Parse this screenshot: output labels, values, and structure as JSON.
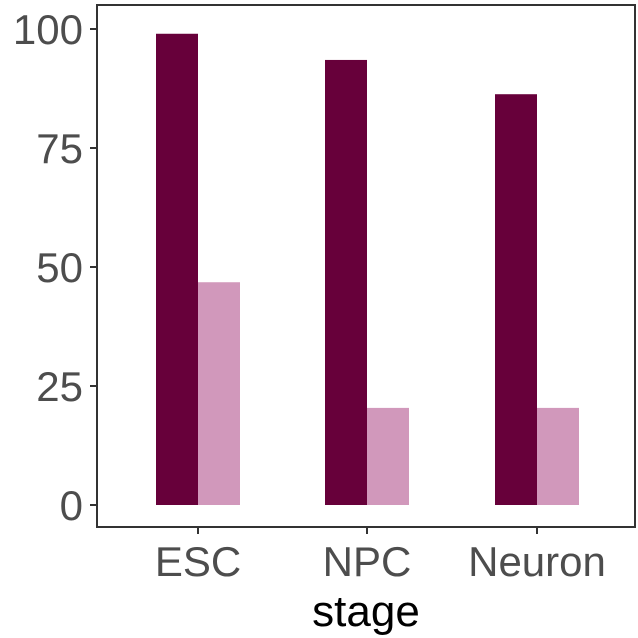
{
  "chart_data": {
    "type": "bar",
    "categories": [
      "ESC",
      "NPC",
      "Neuron"
    ],
    "series": [
      {
        "color": "#67003a",
        "values": [
          99,
          93.5,
          86.3
        ]
      },
      {
        "color": "#d198bb",
        "values": [
          46.8,
          20.4,
          20.4
        ]
      }
    ],
    "xlabel": "stage",
    "ylabel": "",
    "ylim": [
      0,
      100
    ],
    "yticks": [
      "0",
      "25",
      "50",
      "75",
      "100"
    ],
    "grid": false,
    "legend": "none"
  }
}
